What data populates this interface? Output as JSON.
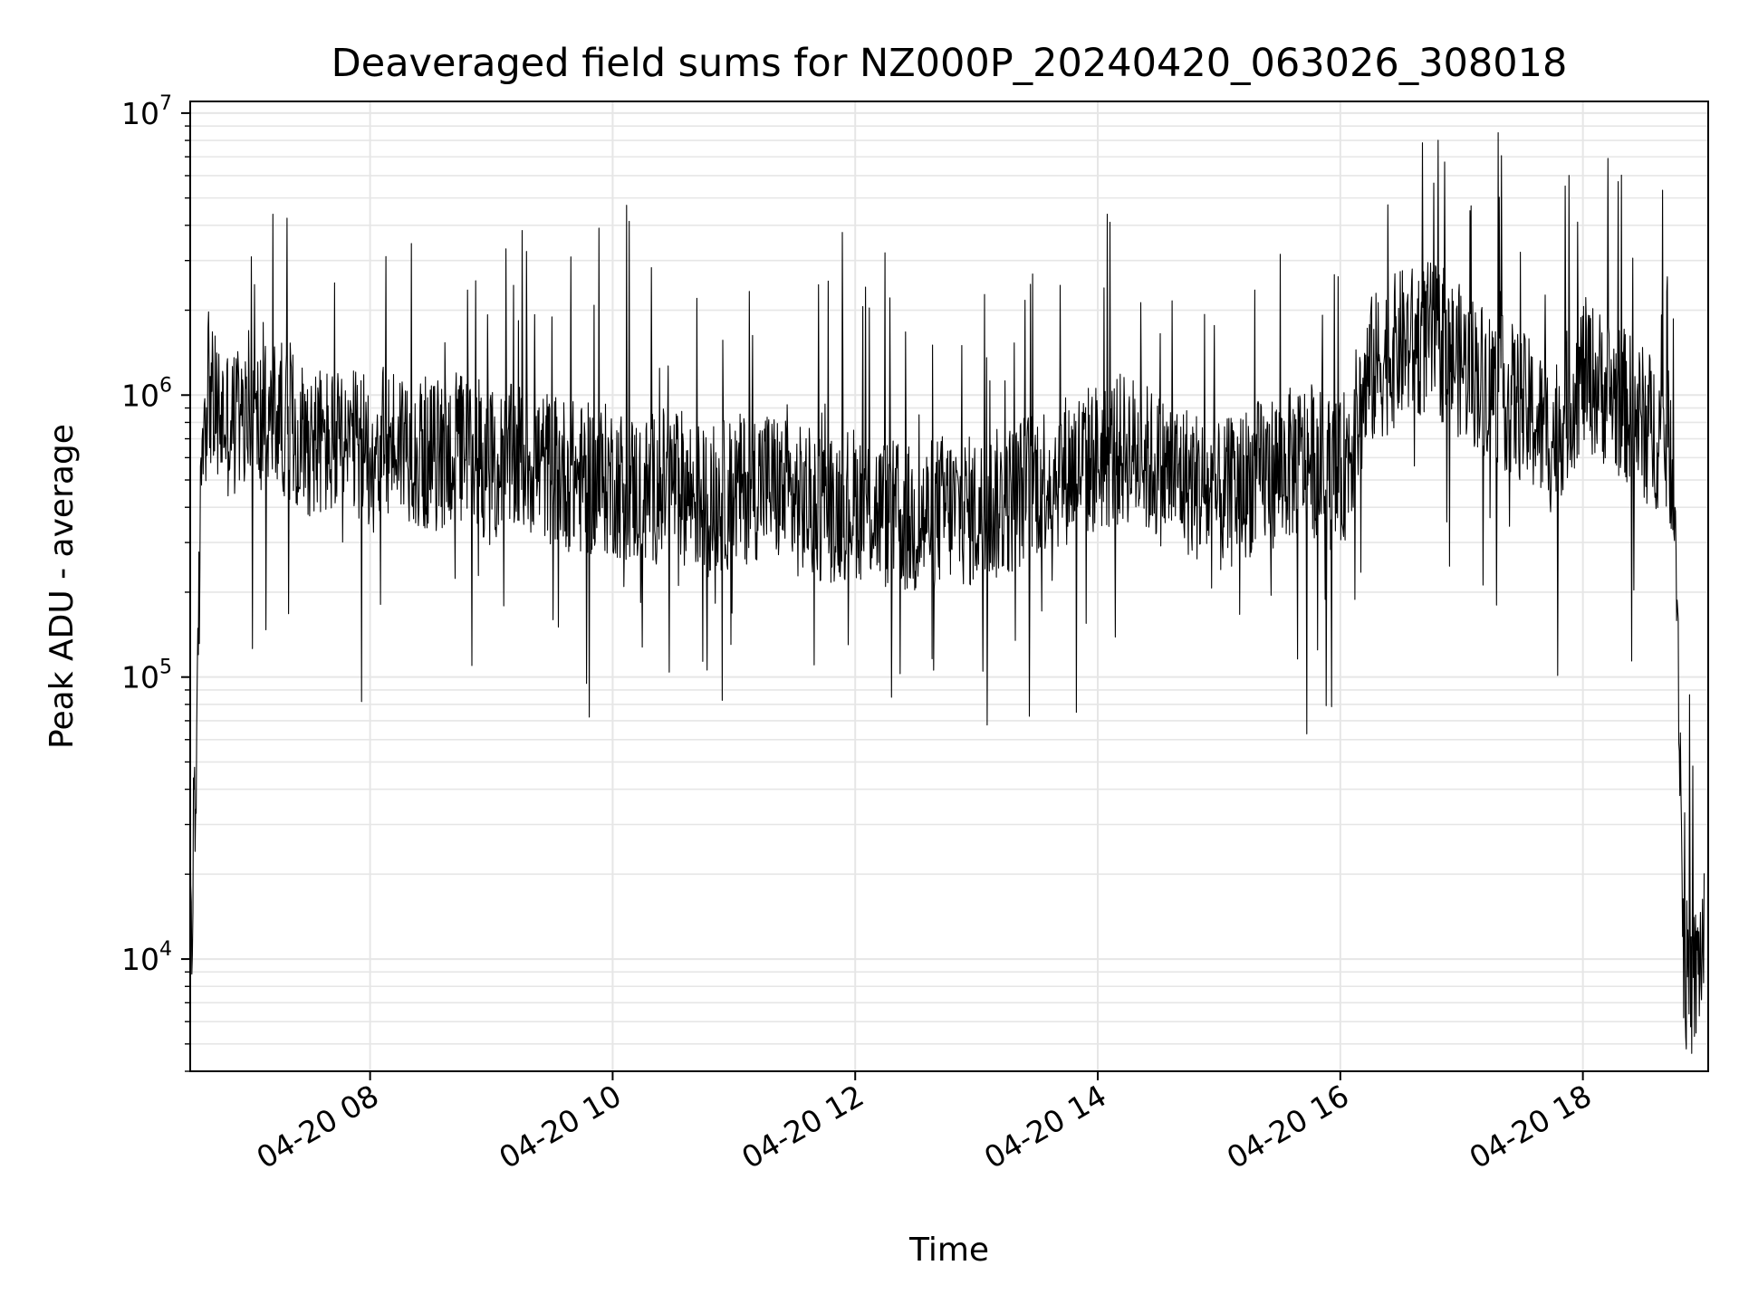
{
  "chart_data": {
    "type": "line",
    "title": "Deaveraged field sums for NZ000P_20240420_063026_308018",
    "xlabel": "Time",
    "ylabel": "Peak ADU - average",
    "yscale": "log",
    "ylim": [
      4000,
      11000000
    ],
    "xlim": [
      "04-20 06:31",
      "04-20 19:02"
    ],
    "grid": true,
    "line_color": "#000000",
    "grid_color": "#e6e6e6",
    "x_ticks": [
      "04-20 08",
      "04-20 10",
      "04-20 12",
      "04-20 14",
      "04-20 16",
      "04-20 18"
    ],
    "y_ticks": [
      {
        "base": "10",
        "exp": "4",
        "value": 10000
      },
      {
        "base": "10",
        "exp": "5",
        "value": 100000
      },
      {
        "base": "10",
        "exp": "6",
        "value": 1000000
      },
      {
        "base": "10",
        "exp": "7",
        "value": 10000000
      }
    ],
    "series": [
      {
        "x": [
          "04-20 06:31",
          "04-20 06:32",
          "04-20 06:33",
          "04-20 06:34",
          "04-20 06:35",
          "04-20 06:36",
          "04-20 06:37",
          "04-20 06:38",
          "04-20 06:40",
          "04-20 06:42",
          "04-20 06:45",
          "04-20 06:50",
          "04-20 07:00",
          "04-20 07:15",
          "04-20 07:30",
          "04-20 07:45",
          "04-20 08:00",
          "04-20 08:15",
          "04-20 08:30",
          "04-20 08:45",
          "04-20 09:00",
          "04-20 09:15",
          "04-20 09:30",
          "04-20 09:45",
          "04-20 10:00",
          "04-20 10:15",
          "04-20 10:30",
          "04-20 10:45",
          "04-20 11:00",
          "04-20 11:15",
          "04-20 11:30",
          "04-20 11:45",
          "04-20 12:00",
          "04-20 12:15",
          "04-20 12:30",
          "04-20 12:45",
          "04-20 13:00",
          "04-20 13:15",
          "04-20 13:30",
          "04-20 13:45",
          "04-20 14:00",
          "04-20 14:15",
          "04-20 14:30",
          "04-20 14:45",
          "04-20 15:00",
          "04-20 15:15",
          "04-20 15:30",
          "04-20 15:45",
          "04-20 16:00",
          "04-20 16:15",
          "04-20 16:30",
          "04-20 16:45",
          "04-20 17:00",
          "04-20 17:15",
          "04-20 17:30",
          "04-20 17:45",
          "04-20 18:00",
          "04-20 18:15",
          "04-20 18:30",
          "04-20 18:40",
          "04-20 18:45",
          "04-20 18:47",
          "04-20 18:50",
          "04-20 18:55",
          "04-20 19:00"
        ],
        "y": [
          20000,
          10500,
          60000,
          26000,
          150000,
          300000,
          900000,
          800000,
          1200000,
          900000,
          850000,
          800000,
          750000,
          850000,
          700000,
          650000,
          650000,
          700000,
          600000,
          650000,
          550000,
          600000,
          550000,
          500000,
          500000,
          450000,
          500000,
          420000,
          450000,
          500000,
          420000,
          400000,
          420000,
          380000,
          350000,
          400000,
          380000,
          420000,
          500000,
          550000,
          600000,
          650000,
          550000,
          500000,
          420000,
          500000,
          550000,
          600000,
          500000,
          1200000,
          1500000,
          1600000,
          1300000,
          1100000,
          900000,
          700000,
          1200000,
          1000000,
          800000,
          700000,
          600000,
          150000,
          9000,
          8000,
          12000
        ]
      }
    ]
  }
}
